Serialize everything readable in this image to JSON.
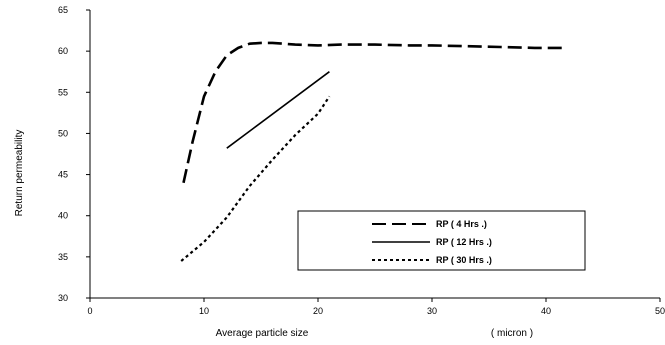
{
  "chart_data": {
    "type": "line",
    "xlabel": "Average particle size",
    "xlabel_unit": "( micron )",
    "ylabel": "Return permeability",
    "xlim": [
      0,
      50
    ],
    "ylim": [
      30,
      65
    ],
    "xticks": [
      0,
      10,
      20,
      30,
      40,
      50
    ],
    "yticks": [
      30,
      35,
      40,
      45,
      50,
      55,
      60,
      65
    ],
    "grid": false,
    "legend_position": "bottom-right",
    "series": [
      {
        "name": "RP ( 4 Hrs .)",
        "dash": "long-dash",
        "x": [
          8.2,
          9.0,
          10.0,
          11.0,
          12.0,
          13.0,
          14.0,
          15.0,
          16.0,
          18.0,
          20.0,
          22.0,
          25.0,
          28.0,
          30.0,
          33.0,
          36.0,
          39.0,
          41.5
        ],
        "y": [
          44.0,
          49.0,
          54.5,
          57.5,
          59.5,
          60.4,
          60.9,
          61.0,
          61.0,
          60.8,
          60.7,
          60.8,
          60.8,
          60.7,
          60.7,
          60.6,
          60.5,
          60.4,
          60.4
        ]
      },
      {
        "name": "RP ( 12 Hrs .)",
        "dash": "solid",
        "x": [
          12.0,
          21.0
        ],
        "y": [
          48.2,
          57.5
        ]
      },
      {
        "name": "RP ( 30 Hrs .)",
        "dash": "short-dash",
        "x": [
          8.0,
          10.0,
          12.0,
          14.0,
          16.0,
          18.0,
          20.0,
          21.0
        ],
        "y": [
          34.5,
          36.8,
          39.8,
          43.6,
          46.8,
          49.8,
          52.4,
          54.5
        ]
      }
    ]
  }
}
